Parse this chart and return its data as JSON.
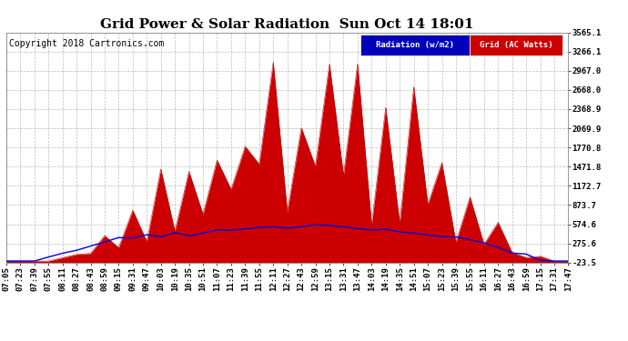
{
  "title": "Grid Power & Solar Radiation  Sun Oct 14 18:01",
  "copyright": "Copyright 2018 Cartronics.com",
  "legend_radiation": "Radiation (w/m2)",
  "legend_grid": "Grid (AC Watts)",
  "yticks": [
    -23.5,
    275.6,
    574.6,
    873.7,
    1172.7,
    1471.8,
    1770.8,
    2069.9,
    2368.9,
    2668.0,
    2967.0,
    3266.1,
    3565.1
  ],
  "ymin": -23.5,
  "ymax": 3565.1,
  "xtick_labels": [
    "07:05",
    "07:23",
    "07:39",
    "07:55",
    "08:11",
    "08:27",
    "08:43",
    "08:59",
    "09:15",
    "09:31",
    "09:47",
    "10:03",
    "10:19",
    "10:35",
    "10:51",
    "11:07",
    "11:23",
    "11:39",
    "11:55",
    "12:11",
    "12:27",
    "12:43",
    "12:59",
    "13:15",
    "13:31",
    "13:47",
    "14:03",
    "14:19",
    "14:35",
    "14:51",
    "15:07",
    "15:23",
    "15:39",
    "15:55",
    "16:11",
    "16:27",
    "16:43",
    "16:59",
    "17:15",
    "17:31",
    "17:47"
  ],
  "bg_color": "#ffffff",
  "plot_bg_color": "#ffffff",
  "grid_color": "#bbbbbb",
  "radiation_color": "#0000dd",
  "grid_ac_color": "#cc0000",
  "grid_ac_fill_color": "#cc0000",
  "title_fontsize": 11,
  "tick_fontsize": 6.5,
  "copyright_fontsize": 7
}
